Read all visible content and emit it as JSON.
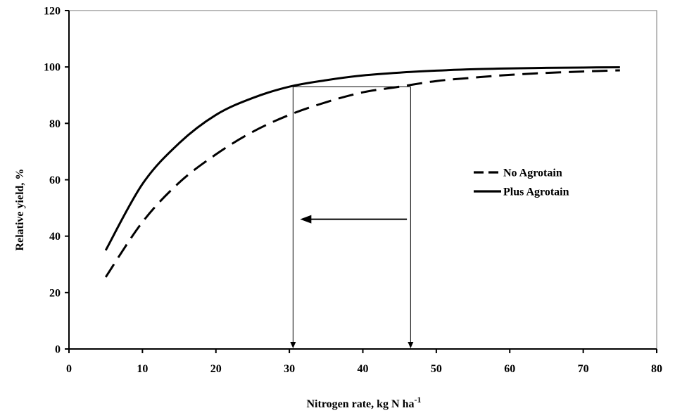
{
  "chart_data": {
    "type": "line",
    "title": "",
    "xlabel": "Nitrogen rate, kg N ha",
    "xlabel_superscript": "-1",
    "ylabel": "Relative yield, %",
    "xlim": [
      0,
      80
    ],
    "ylim": [
      0,
      120
    ],
    "x_ticks": [
      "0",
      "10",
      "20",
      "30",
      "40",
      "50",
      "60",
      "70",
      "80"
    ],
    "y_ticks": [
      "0",
      "20",
      "40",
      "60",
      "80",
      "100",
      "120"
    ],
    "grid": false,
    "legend_position": "right",
    "series": [
      {
        "name": "No Agrotain",
        "style": "dashed",
        "x": [
          5,
          10,
          15,
          20,
          25,
          30,
          35,
          40,
          45,
          50,
          55,
          60,
          65,
          70,
          75
        ],
        "y": [
          25.5,
          45,
          59,
          69,
          77,
          83,
          87.5,
          91,
          93,
          95,
          96.2,
          97.2,
          97.9,
          98.4,
          98.8
        ]
      },
      {
        "name": "Plus Agrotain",
        "style": "solid",
        "x": [
          5,
          10,
          15,
          20,
          25,
          30,
          35,
          40,
          45,
          50,
          55,
          60,
          65,
          70,
          75
        ],
        "y": [
          35,
          58.5,
          73,
          83,
          89,
          93,
          95.3,
          97,
          98,
          98.7,
          99.2,
          99.5,
          99.7,
          99.8,
          99.9
        ]
      }
    ],
    "annotations": {
      "plateau_y": 93,
      "plus_x": 30.5,
      "no_x": 46.5,
      "arrow_from_x": 46,
      "arrow_to_x": 30.5,
      "arrow_y": 46
    }
  }
}
